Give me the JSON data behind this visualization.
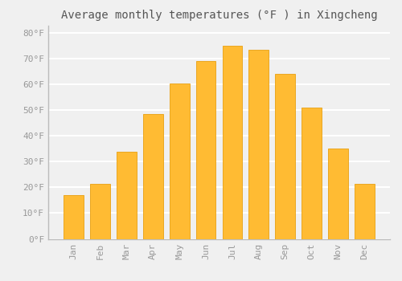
{
  "title": "Average monthly temperatures (°F ) in Xingcheng",
  "months": [
    "Jan",
    "Feb",
    "Mar",
    "Apr",
    "May",
    "Jun",
    "Jul",
    "Aug",
    "Sep",
    "Oct",
    "Nov",
    "Dec"
  ],
  "values": [
    17,
    21.5,
    34,
    48.5,
    60.5,
    69,
    75,
    73.5,
    64,
    51,
    35,
    21.5
  ],
  "bar_color": "#FFBB33",
  "bar_edge_color": "#E8A010",
  "background_color": "#F0F0F0",
  "grid_color": "#FFFFFF",
  "ylim": [
    0,
    83
  ],
  "yticks": [
    0,
    10,
    20,
    30,
    40,
    50,
    60,
    70,
    80
  ],
  "ytick_labels": [
    "0°F",
    "10°F",
    "20°F",
    "30°F",
    "40°F",
    "50°F",
    "60°F",
    "70°F",
    "80°F"
  ],
  "title_fontsize": 10,
  "tick_fontsize": 8,
  "tick_color": "#999999",
  "spine_color": "#BBBBBB",
  "title_color": "#555555"
}
